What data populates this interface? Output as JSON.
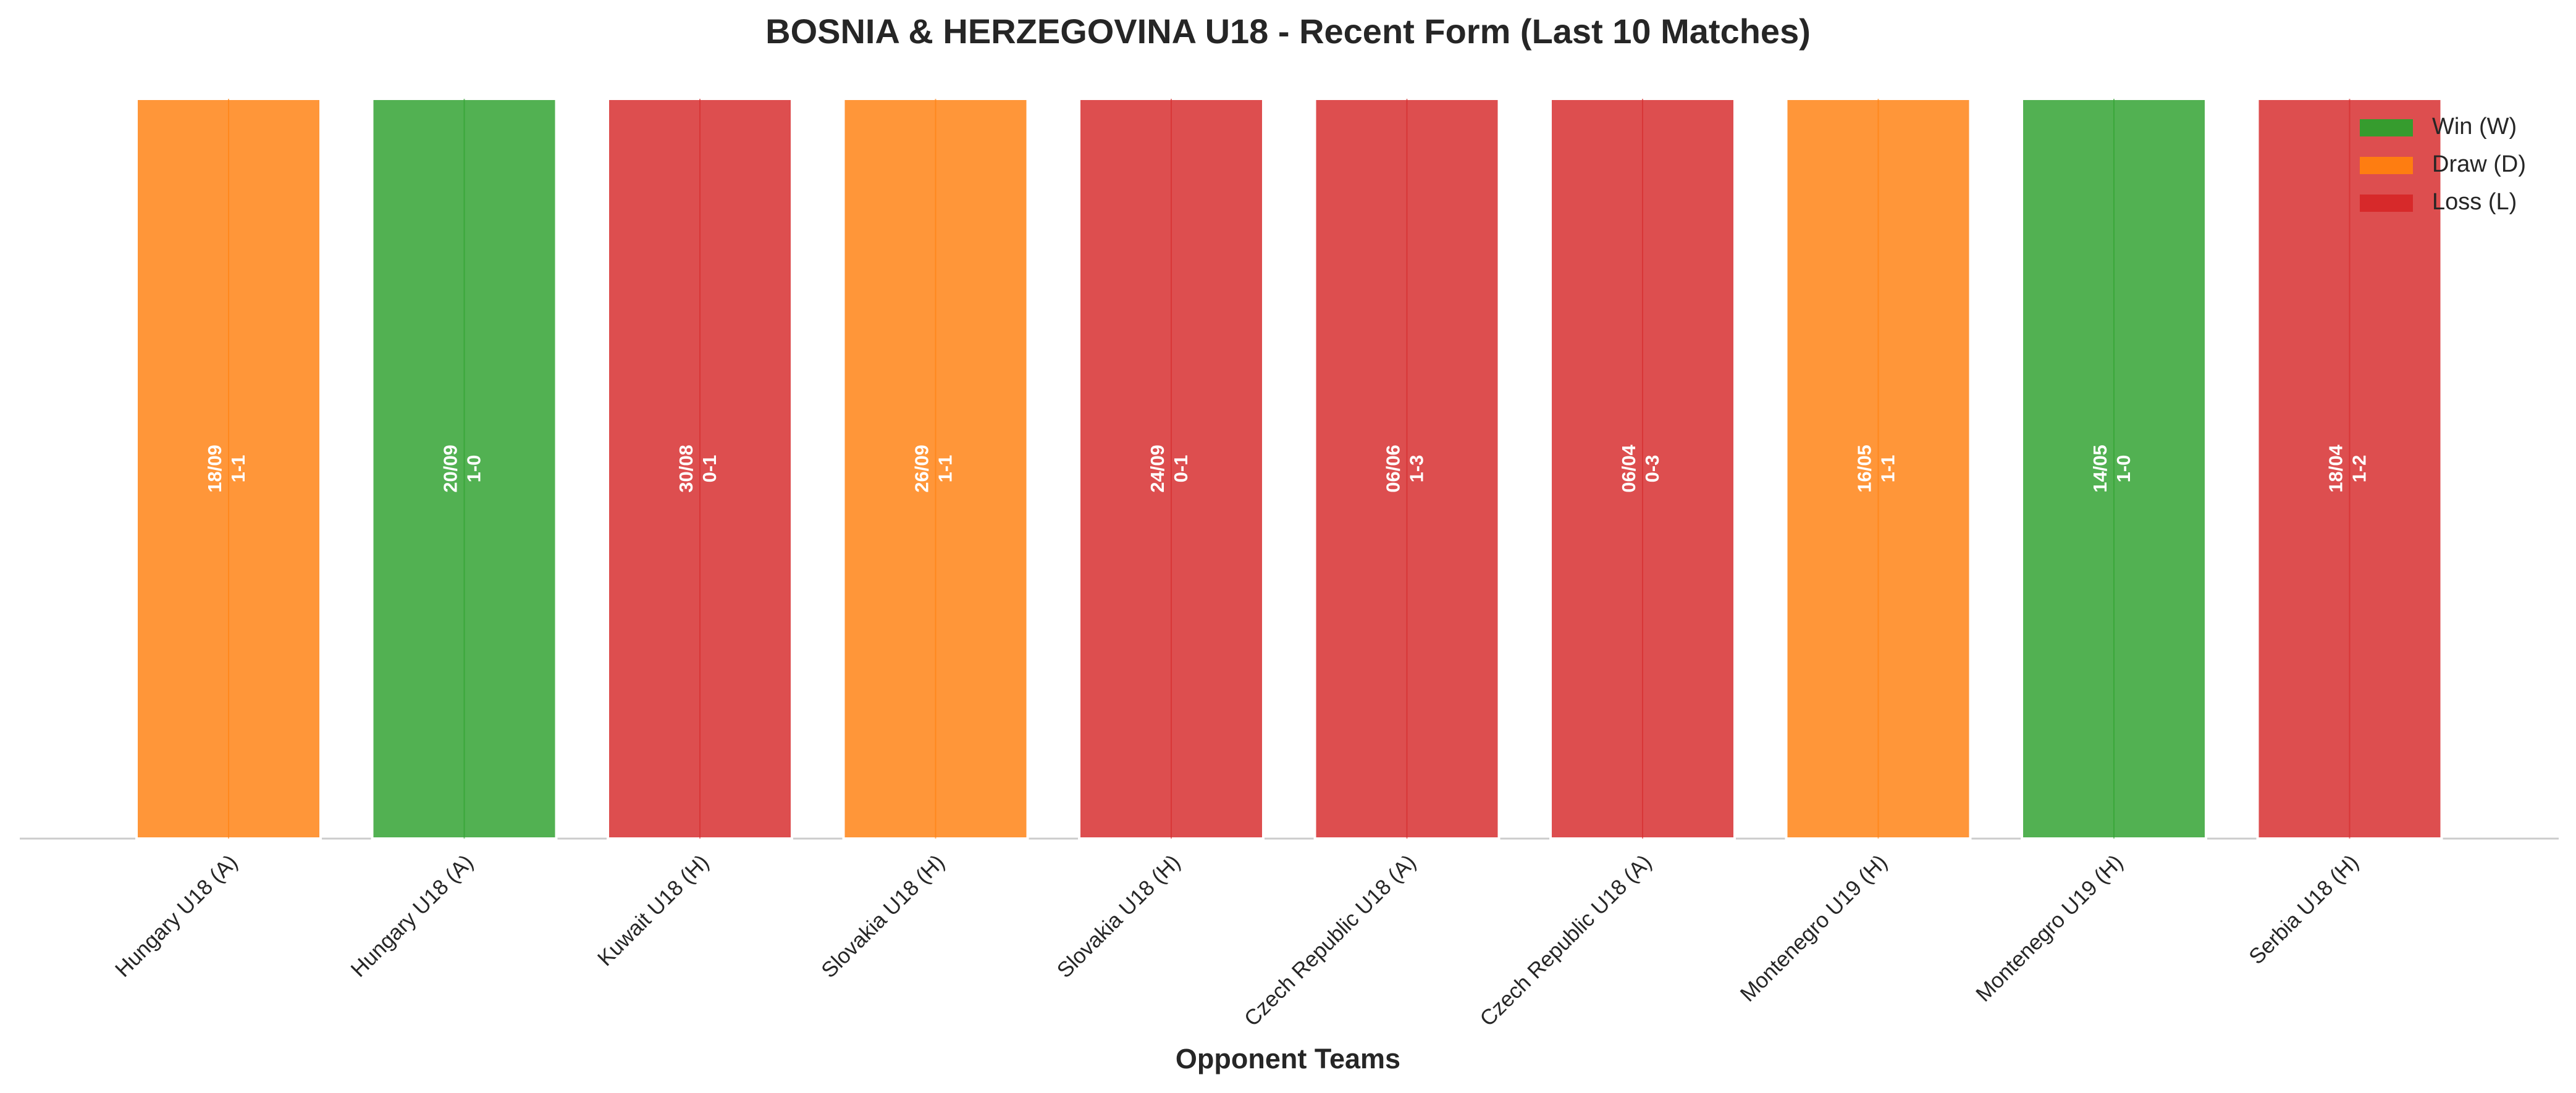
{
  "chart_data": {
    "type": "bar",
    "title": "BOSNIA & HERZEGOVINA U18 - Recent Form (Last 10 Matches)",
    "x_label": "Opponent Teams",
    "categories": [
      "Hungary U18 (A)",
      "Hungary U18 (A)",
      "Kuwait U18 (H)",
      "Slovakia U18 (H)",
      "Slovakia U18 (H)",
      "Czech Republic U18 (A)",
      "Czech Republic U18 (A)",
      "Montenegro U19 (H)",
      "Montenegro U19 (H)",
      "Serbia U18 (H)"
    ],
    "values": [
      1,
      1,
      1,
      1,
      1,
      1,
      1,
      1,
      1,
      1
    ],
    "dates": [
      "18/09",
      "20/09",
      "30/08",
      "26/09",
      "24/09",
      "06/06",
      "06/04",
      "16/05",
      "14/05",
      "18/04"
    ],
    "scores": [
      "1-1",
      "1-0",
      "0-1",
      "1-1",
      "0-1",
      "1-3",
      "0-3",
      "1-1",
      "1-0",
      "1-2"
    ],
    "colors": [
      "#ff7f0e",
      "#2ca02c",
      "#d62728",
      "#ff7f0e",
      "#d62728",
      "#d62728",
      "#d62728",
      "#ff7f0e",
      "#2ca02c",
      "#d62728"
    ],
    "ylim": [
      0,
      1
    ],
    "legend_position": "upper right",
    "legend": [
      {
        "name": "Win (W)",
        "color": "#2ca02c"
      },
      {
        "name": "Draw (D)",
        "color": "#ff7f0e"
      },
      {
        "name": "Loss (L)",
        "color": "#d62728"
      }
    ]
  }
}
